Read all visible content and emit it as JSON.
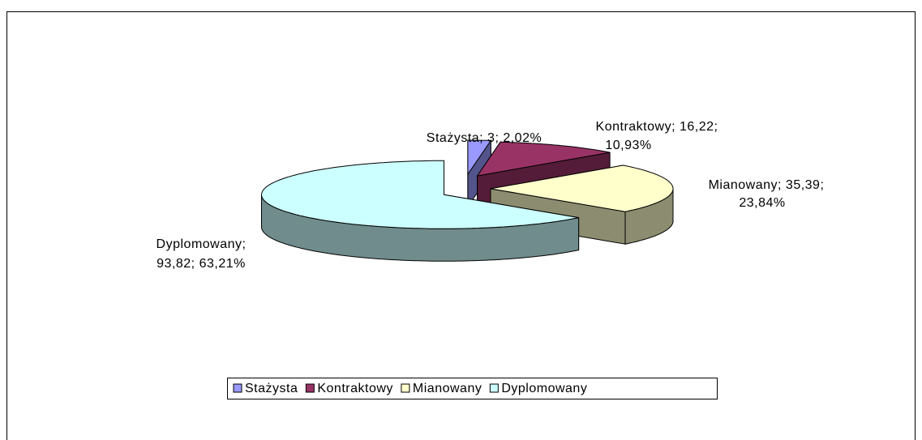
{
  "chart_data": {
    "type": "pie3d",
    "categories": [
      "Stażysta",
      "Kontraktowy",
      "Mianowany",
      "Dyplomowany"
    ],
    "values": [
      3,
      16.22,
      35.39,
      93.82
    ],
    "value_labels": [
      [
        "Stażysta; 3; 2,02%"
      ],
      [
        "Kontraktowy; 16,22;",
        "10,93%"
      ],
      [
        "Mianowany; 35,39;",
        "23,84%"
      ],
      [
        "Dyplomowany;",
        "93,82; 63,21%"
      ]
    ],
    "colors": [
      "#9999ff",
      "#993366",
      "#ffffcc",
      "#ccffff"
    ],
    "legend": "bottom"
  }
}
